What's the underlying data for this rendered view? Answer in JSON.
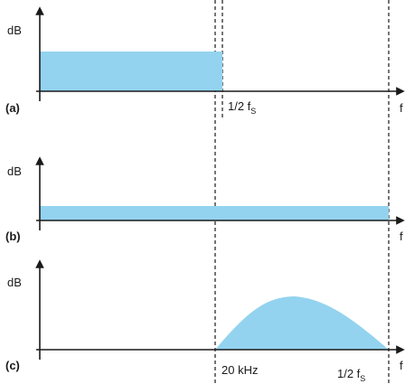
{
  "colors": {
    "fill": "#93d3ef",
    "ink": "#1a1a1a"
  },
  "panels": [
    {
      "label": "(a)",
      "ylabel": "dB",
      "xlabel_end": "f"
    },
    {
      "label": "(b)",
      "ylabel": "dB",
      "xlabel_end": "f"
    },
    {
      "label": "(c)",
      "ylabel": "dB",
      "xlabel_end": "f"
    }
  ],
  "markers": {
    "half_fs_a": {
      "text": "1/2 f",
      "sub": "S"
    },
    "twenty_khz": "20 kHz",
    "half_fs_c": {
      "text": "1/2 f",
      "sub": "S"
    }
  }
}
